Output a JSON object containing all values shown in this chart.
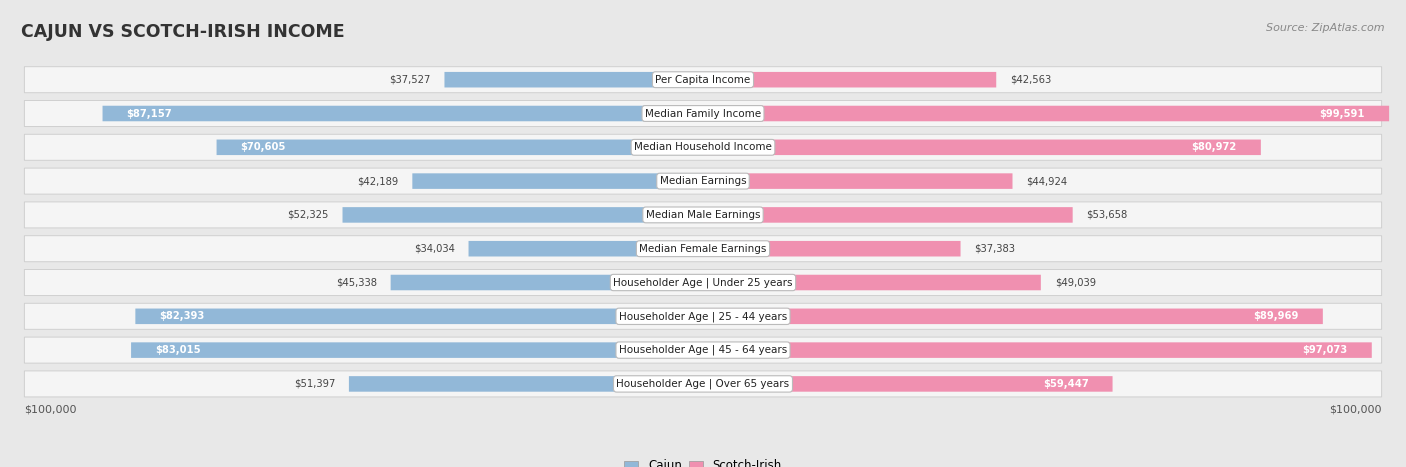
{
  "title": "CAJUN VS SCOTCH-IRISH INCOME",
  "source": "Source: ZipAtlas.com",
  "categories": [
    "Per Capita Income",
    "Median Family Income",
    "Median Household Income",
    "Median Earnings",
    "Median Male Earnings",
    "Median Female Earnings",
    "Householder Age | Under 25 years",
    "Householder Age | 25 - 44 years",
    "Householder Age | 45 - 64 years",
    "Householder Age | Over 65 years"
  ],
  "cajun_values": [
    37527,
    87157,
    70605,
    42189,
    52325,
    34034,
    45338,
    82393,
    83015,
    51397
  ],
  "scotch_values": [
    42563,
    99591,
    80972,
    44924,
    53658,
    37383,
    49039,
    89969,
    97073,
    59447
  ],
  "cajun_labels": [
    "$37,527",
    "$87,157",
    "$70,605",
    "$42,189",
    "$52,325",
    "$34,034",
    "$45,338",
    "$82,393",
    "$83,015",
    "$51,397"
  ],
  "scotch_labels": [
    "$42,563",
    "$99,591",
    "$80,972",
    "$44,924",
    "$53,658",
    "$37,383",
    "$49,039",
    "$89,969",
    "$97,073",
    "$59,447"
  ],
  "cajun_color": "#92b8d8",
  "scotch_color": "#f090b0",
  "max_value": 100000,
  "background_color": "#e8e8e8",
  "row_bg_color": "#f0f0f0",
  "title_color": "#333333",
  "source_color": "#888888",
  "label_inside_color": "#ffffff",
  "label_outside_color": "#555555",
  "inside_threshold": 55000
}
